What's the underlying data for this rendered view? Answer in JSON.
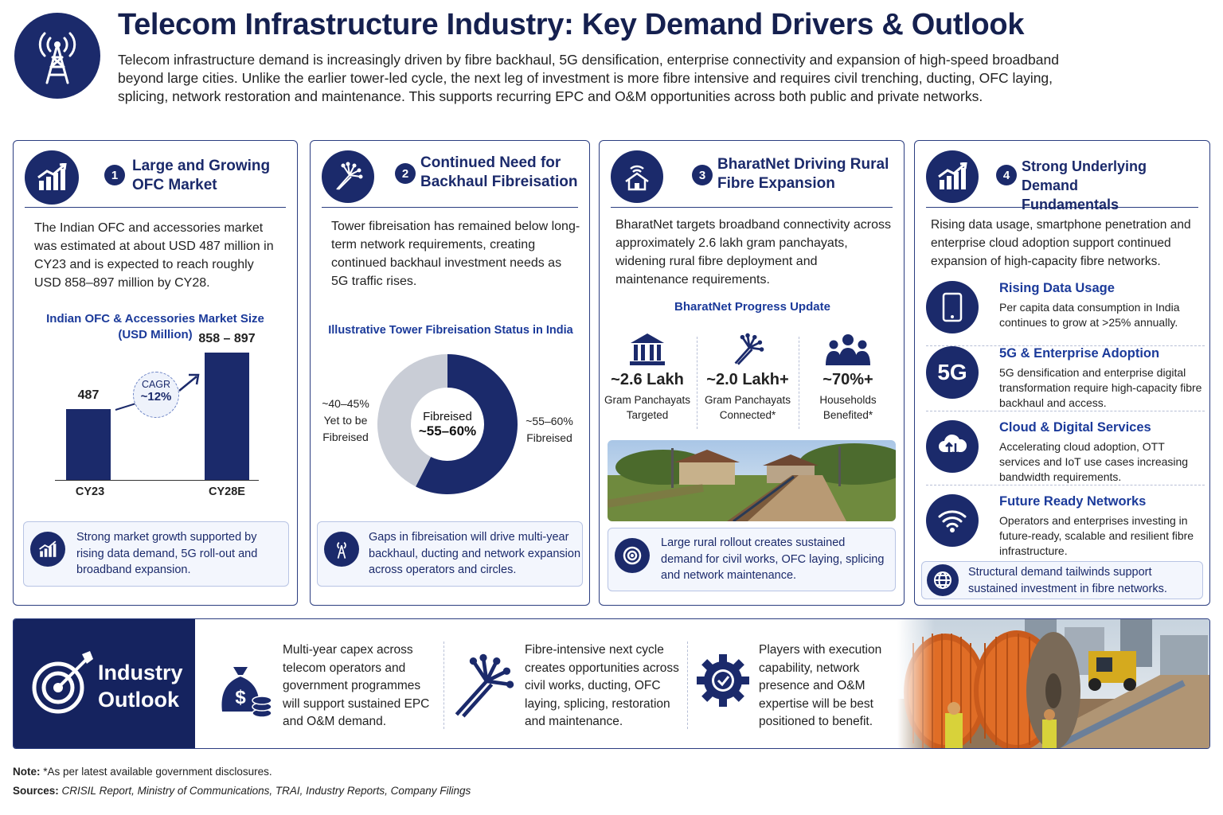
{
  "header": {
    "title": "Telecom Infrastructure Industry: Key Demand Drivers & Outlook",
    "intro": "Telecom infrastructure demand is increasingly driven by fibre backhaul, 5G densification, enterprise connectivity and expansion of high-speed broadband beyond large cities. Unlike the earlier tower-led cycle, the next leg of investment is more fibre intensive and requires civil trenching, ducting, OFC laying, splicing, network restoration and maintenance. This supports recurring EPC and O&M opportunities across both public and private networks."
  },
  "cards": {
    "c1": {
      "num": "1",
      "title_l1": "Large and Growing",
      "title_l2": "OFC Market",
      "body": "The Indian OFC and accessories market was estimated at about USD 487 million in CY23 and is expected to reach roughly USD 858–897 million by CY28.",
      "chart_title_l1": "Indian OFC & Accessories Market Size",
      "chart_title_l2": "(USD Million)",
      "cagr_label": "CAGR",
      "cagr_value": "~12%",
      "callout": "Strong market growth supported by rising data demand, 5G roll-out and broadband expansion."
    },
    "c2": {
      "num": "2",
      "title_l1": "Continued Need for",
      "title_l2": "Backhaul Fibreisation",
      "body": "Tower fibreisation has remained below long-term network requirements, creating continued backhaul investment needs as 5G traffic rises.",
      "chart_title": "Illustrative Tower Fibreisation Status in India",
      "center_l1": "Fibreised",
      "center_l2": "~55–60%",
      "left_l1": "~40–45%",
      "left_l2": "Yet to be",
      "left_l3": "Fibreised",
      "right_l1": "~55–60%",
      "right_l2": "Fibreised",
      "callout": "Gaps in fibreisation will drive multi-year backhaul, ducting and network expansion across operators and circles."
    },
    "c3": {
      "num": "3",
      "title_l1": "BharatNet Driving Rural",
      "title_l2": "Fibre Expansion",
      "body": "BharatNet targets broadband connectivity across approximately 2.6 lakh gram panchayats, widening rural fibre deployment and maintenance requirements.",
      "progress_title": "BharatNet Progress Update",
      "stats": [
        {
          "value": "~2.6 Lakh",
          "l1": "Gram Panchayats",
          "l2": "Targeted"
        },
        {
          "value": "~2.0 Lakh+",
          "l1": "Gram Panchayats",
          "l2": "Connected*"
        },
        {
          "value": "~70%+",
          "l1": "Households",
          "l2": "Benefited*"
        }
      ],
      "callout": "Large rural rollout creates sustained demand for civil works, OFC laying, splicing and network maintenance."
    },
    "c4": {
      "num": "4",
      "title_l1": "Strong Underlying Demand",
      "title_l2": "Fundamentals",
      "body": "Rising data usage, smartphone penetration and enterprise cloud adoption support continued expansion of high-capacity fibre networks.",
      "drivers": [
        {
          "title": "Rising Data Usage",
          "desc": "Per capita data consumption in India continues to grow at >25% annually.",
          "icon": "smartphone-icon"
        },
        {
          "title": "5G & Enterprise Adoption",
          "desc": "5G densification and enterprise digital transformation require high-capacity fibre backhaul and access.",
          "icon": "5g-icon",
          "icon_text": "5G"
        },
        {
          "title": "Cloud & Digital Services",
          "desc": "Accelerating cloud adoption, OTT services and IoT use cases increasing bandwidth requirements.",
          "icon": "cloud-icon"
        },
        {
          "title": "Future Ready Networks",
          "desc": "Operators and enterprises investing in future-ready, scalable and resilient fibre infrastructure.",
          "icon": "wifi-icon"
        }
      ],
      "callout": "Structural demand tailwinds support sustained investment in fibre networks."
    }
  },
  "outlook": {
    "title_l1": "Industry",
    "title_l2": "Outlook",
    "items": [
      "Multi-year capex across telecom operators and government programmes will support sustained EPC and O&M demand.",
      "Fibre-intensive next cycle creates opportunities across civil works, ducting, OFC laying, splicing, restoration and maintenance.",
      "Players with execution capability, network presence and O&M expertise will be best positioned to benefit."
    ]
  },
  "footer": {
    "note_label": "Note:",
    "note": "*As per latest available government disclosures.",
    "sources_label": "Sources:",
    "sources": "CRISIL Report, Ministry of Communications, TRAI, Industry Reports, Company Filings"
  },
  "colors": {
    "navy": "#1b2a6b",
    "grey_segment": "#c9cdd6",
    "accent_blue": "#1b3a9a"
  },
  "chart_data": [
    {
      "type": "bar",
      "title": "Indian OFC & Accessories Market Size (USD Million)",
      "categories": [
        "CY23",
        "CY28E"
      ],
      "values": [
        487,
        877.5
      ],
      "value_labels": [
        "487",
        "858 – 897"
      ],
      "annotation": "CAGR ~12%"
    },
    {
      "type": "pie",
      "title": "Illustrative Tower Fibreisation Status in India",
      "categories": [
        "Fibreised",
        "Yet to be Fibreised"
      ],
      "values": [
        57.5,
        42.5
      ],
      "value_labels": [
        "~55–60%",
        "~40–45%"
      ]
    }
  ]
}
